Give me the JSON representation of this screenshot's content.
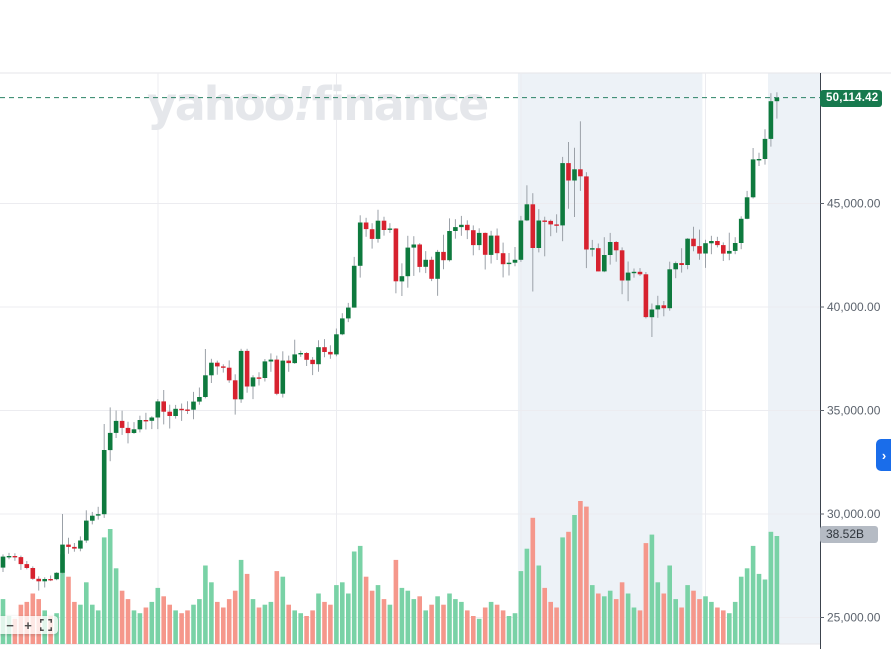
{
  "watermark": {
    "text_before_bang": "yahoo",
    "bang": "!",
    "text_after_bang": "finance"
  },
  "price_axis": {
    "current_price_label": "50,114.42",
    "volume_badge_label": "38.52B",
    "ticks": [
      {
        "label": "45,000.00",
        "price": 45000
      },
      {
        "label": "40,000.00",
        "price": 40000
      },
      {
        "label": "35,000.00",
        "price": 35000
      },
      {
        "label": "30,000.00",
        "price": 30000
      },
      {
        "label": "25,000.00",
        "price": 25000
      }
    ]
  },
  "toolbar": {
    "zoom_out_label": "−",
    "zoom_in_label": "+"
  },
  "panel": {
    "chevron_glyph": "›"
  },
  "colors": {
    "candle_up": "#0e7a3e",
    "candle_down": "#d7222f",
    "wick": "#9ba1a8",
    "volume_up": "#79d2a6",
    "volume_down": "#f5978b",
    "dashed_line": "#2b8266",
    "price_badge_bg": "#17794e",
    "volume_badge_bg": "#b5bbc4",
    "volume_badge_text": "#2f353c",
    "highlight_band": "#edf2f7",
    "gridline": "#ececf0",
    "chart_border": "#e6e6ea",
    "axis_line": "#3c434d",
    "axis_text": "#5c636d",
    "watermark": "#e5e7eb",
    "panel_button_blue": "#1a6dea"
  },
  "chart_data": {
    "type": "candlestick",
    "current_price": 50114.42,
    "latest_volume_billion": 38.52,
    "price_axis_ticks": [
      45000,
      40000,
      35000,
      30000,
      25000
    ],
    "vertical_gridline_indices": [
      26,
      56,
      87,
      118
    ],
    "highlight_bands": [
      {
        "from_index": 87,
        "to_index": 118
      },
      {
        "from_index": 129,
        "to_index": null
      }
    ],
    "candles_ohlc_usd": [
      [
        27410,
        28050,
        27200,
        27940
      ],
      [
        27940,
        28120,
        27810,
        27970
      ],
      [
        27970,
        28100,
        27740,
        27920
      ],
      [
        27920,
        27990,
        27300,
        27580
      ],
      [
        27580,
        27730,
        27330,
        27390
      ],
      [
        27390,
        27470,
        26820,
        26870
      ],
      [
        26870,
        26990,
        26300,
        26750
      ],
      [
        26750,
        26940,
        26450,
        26860
      ],
      [
        26860,
        27030,
        26760,
        26850
      ],
      [
        26850,
        27190,
        26800,
        27160
      ],
      [
        27160,
        30000,
        27100,
        28520
      ],
      [
        28520,
        28850,
        28080,
        28410
      ],
      [
        28410,
        28600,
        28180,
        28330
      ],
      [
        28330,
        28920,
        28200,
        28720
      ],
      [
        28720,
        30180,
        28610,
        29680
      ],
      [
        29680,
        30100,
        29500,
        29920
      ],
      [
        29920,
        30350,
        29730,
        29990
      ],
      [
        29990,
        34350,
        29810,
        33090
      ],
      [
        33090,
        35150,
        32550,
        33920
      ],
      [
        33920,
        35000,
        33670,
        34500
      ],
      [
        34500,
        34990,
        33820,
        34160
      ],
      [
        34160,
        34460,
        33410,
        33910
      ],
      [
        33910,
        34440,
        33870,
        34090
      ],
      [
        34090,
        34750,
        33940,
        34540
      ],
      [
        34540,
        34890,
        34080,
        34500
      ],
      [
        34500,
        34720,
        34100,
        34660
      ],
      [
        34660,
        35550,
        34100,
        35440
      ],
      [
        35440,
        35990,
        34330,
        34940
      ],
      [
        34940,
        35280,
        34130,
        34730
      ],
      [
        34730,
        35270,
        34610,
        35080
      ],
      [
        35080,
        35340,
        34500,
        35050
      ],
      [
        35050,
        35450,
        34830,
        35040
      ],
      [
        35040,
        35900,
        34580,
        35430
      ],
      [
        35430,
        36110,
        35280,
        35650
      ],
      [
        35650,
        37970,
        35590,
        36700
      ],
      [
        36700,
        37500,
        36330,
        37310
      ],
      [
        37310,
        37410,
        36730,
        37130
      ],
      [
        37130,
        37230,
        36830,
        37070
      ],
      [
        37070,
        37420,
        36340,
        36460
      ],
      [
        36460,
        36750,
        34800,
        35540
      ],
      [
        35540,
        37980,
        35370,
        37880
      ],
      [
        37880,
        37980,
        35860,
        36160
      ],
      [
        36160,
        36700,
        35550,
        36600
      ],
      [
        36600,
        36850,
        36210,
        36570
      ],
      [
        36570,
        37490,
        36400,
        37370
      ],
      [
        37370,
        37760,
        36870,
        37460
      ],
      [
        37460,
        37650,
        35740,
        35810
      ],
      [
        35810,
        37860,
        35630,
        37410
      ],
      [
        37410,
        37650,
        36870,
        37290
      ],
      [
        37290,
        38420,
        37250,
        37710
      ],
      [
        37710,
        37890,
        37590,
        37780
      ],
      [
        37780,
        37820,
        37150,
        37450
      ],
      [
        37450,
        37580,
        36710,
        37240
      ],
      [
        37240,
        38390,
        36870,
        38060
      ],
      [
        38060,
        38450,
        37570,
        37830
      ],
      [
        37830,
        38150,
        37500,
        37710
      ],
      [
        37710,
        38960,
        37620,
        38680
      ],
      [
        38680,
        39700,
        38640,
        39450
      ],
      [
        39450,
        40200,
        39270,
        39970
      ],
      [
        39970,
        42420,
        39970,
        41990
      ],
      [
        41990,
        44430,
        41420,
        44080
      ],
      [
        44080,
        44310,
        43390,
        43760
      ],
      [
        43760,
        44050,
        42820,
        43290
      ],
      [
        43290,
        44700,
        43110,
        44170
      ],
      [
        44170,
        44360,
        43450,
        43720
      ],
      [
        43720,
        44050,
        43580,
        43790
      ],
      [
        43790,
        43810,
        40660,
        41240
      ],
      [
        41240,
        42110,
        40530,
        41490
      ],
      [
        41490,
        43440,
        40930,
        42870
      ],
      [
        42870,
        43420,
        41500,
        43020
      ],
      [
        43020,
        43080,
        41670,
        41940
      ],
      [
        41940,
        42700,
        41640,
        42280
      ],
      [
        42280,
        42430,
        41250,
        41360
      ],
      [
        41360,
        42760,
        40540,
        42660
      ],
      [
        42660,
        43490,
        41820,
        42260
      ],
      [
        42260,
        44280,
        42200,
        43670
      ],
      [
        43670,
        44240,
        43300,
        43860
      ],
      [
        43860,
        44400,
        43440,
        43970
      ],
      [
        43970,
        44190,
        43280,
        43710
      ],
      [
        43710,
        43940,
        42500,
        42990
      ],
      [
        42990,
        43800,
        42750,
        43580
      ],
      [
        43580,
        43600,
        41810,
        42520
      ],
      [
        42520,
        43680,
        42100,
        43450
      ],
      [
        43450,
        43790,
        42270,
        42600
      ],
      [
        42600,
        43110,
        41430,
        42070
      ],
      [
        42070,
        42610,
        41520,
        42140
      ],
      [
        42140,
        42900,
        41970,
        42280
      ],
      [
        42280,
        44400,
        42180,
        44180
      ],
      [
        44180,
        45880,
        44150,
        44960
      ],
      [
        44960,
        45500,
        40750,
        42850
      ],
      [
        42850,
        44730,
        42640,
        44180
      ],
      [
        44180,
        44360,
        42450,
        44160
      ],
      [
        44160,
        44220,
        43420,
        43990
      ],
      [
        43990,
        44480,
        43590,
        43940
      ],
      [
        43940,
        47250,
        43180,
        46950
      ],
      [
        46950,
        47970,
        44750,
        46110
      ],
      [
        46110,
        47690,
        44350,
        46650
      ],
      [
        46650,
        48970,
        45610,
        46310
      ],
      [
        46310,
        46510,
        41880,
        42780
      ],
      [
        42780,
        43240,
        42440,
        42840
      ],
      [
        42840,
        43070,
        41720,
        41720
      ],
      [
        41720,
        43370,
        41680,
        42510
      ],
      [
        42510,
        43580,
        42050,
        43140
      ],
      [
        43140,
        43190,
        42190,
        42740
      ],
      [
        42740,
        42880,
        40620,
        41280
      ],
      [
        41280,
        42200,
        40280,
        41660
      ],
      [
        41660,
        41860,
        41420,
        41700
      ],
      [
        41700,
        41880,
        41500,
        41580
      ],
      [
        41580,
        41690,
        39450,
        39510
      ],
      [
        39510,
        40170,
        38550,
        39880
      ],
      [
        39880,
        40540,
        39480,
        40080
      ],
      [
        40080,
        40290,
        39550,
        39940
      ],
      [
        39940,
        42190,
        39820,
        41820
      ],
      [
        41820,
        42200,
        41390,
        42120
      ],
      [
        42120,
        42840,
        41660,
        42030
      ],
      [
        42030,
        43330,
        41820,
        43300
      ],
      [
        43300,
        43880,
        42690,
        42940
      ],
      [
        42940,
        43740,
        42280,
        42580
      ],
      [
        42580,
        43250,
        41890,
        43080
      ],
      [
        43080,
        43440,
        42550,
        43190
      ],
      [
        43190,
        43390,
        42880,
        42990
      ],
      [
        42990,
        43120,
        42220,
        42580
      ],
      [
        42580,
        43590,
        42260,
        42710
      ],
      [
        42710,
        43370,
        42550,
        43090
      ],
      [
        43090,
        44380,
        42790,
        44260
      ],
      [
        44260,
        45610,
        44240,
        45300
      ],
      [
        45300,
        47680,
        45240,
        47130
      ],
      [
        47130,
        47450,
        46810,
        47150
      ],
      [
        47150,
        48590,
        46880,
        48120
      ],
      [
        48120,
        50330,
        47750,
        49940
      ],
      [
        49940,
        50370,
        49100,
        50110
      ]
    ],
    "volumes_billion_usd": [
      16,
      10,
      9,
      14,
      15,
      18,
      16,
      12,
      10,
      11,
      32,
      24,
      15,
      14,
      22,
      14,
      12,
      38,
      41,
      27,
      19,
      16,
      12,
      11,
      13,
      15,
      20,
      17,
      14,
      12,
      11,
      12,
      14,
      16,
      28,
      22,
      15,
      13,
      16,
      19,
      30,
      25,
      16,
      13,
      14,
      15,
      26,
      24,
      14,
      12,
      11,
      10,
      12,
      18,
      15,
      14,
      21,
      22,
      18,
      33,
      35,
      24,
      19,
      21,
      16,
      14,
      30,
      20,
      19,
      16,
      17,
      12,
      14,
      17,
      14,
      18,
      16,
      15,
      12,
      10,
      9,
      13,
      15,
      14,
      12,
      10,
      11,
      26,
      34,
      45,
      28,
      20,
      15,
      13,
      38,
      40,
      46,
      51,
      49,
      21,
      18,
      17,
      19,
      16,
      22,
      18,
      13,
      12,
      36,
      39,
      22,
      18,
      28,
      16,
      13,
      21,
      19,
      16,
      17,
      15,
      13,
      12,
      11,
      15,
      24,
      27,
      35,
      25,
      23,
      40,
      38.52
    ]
  }
}
